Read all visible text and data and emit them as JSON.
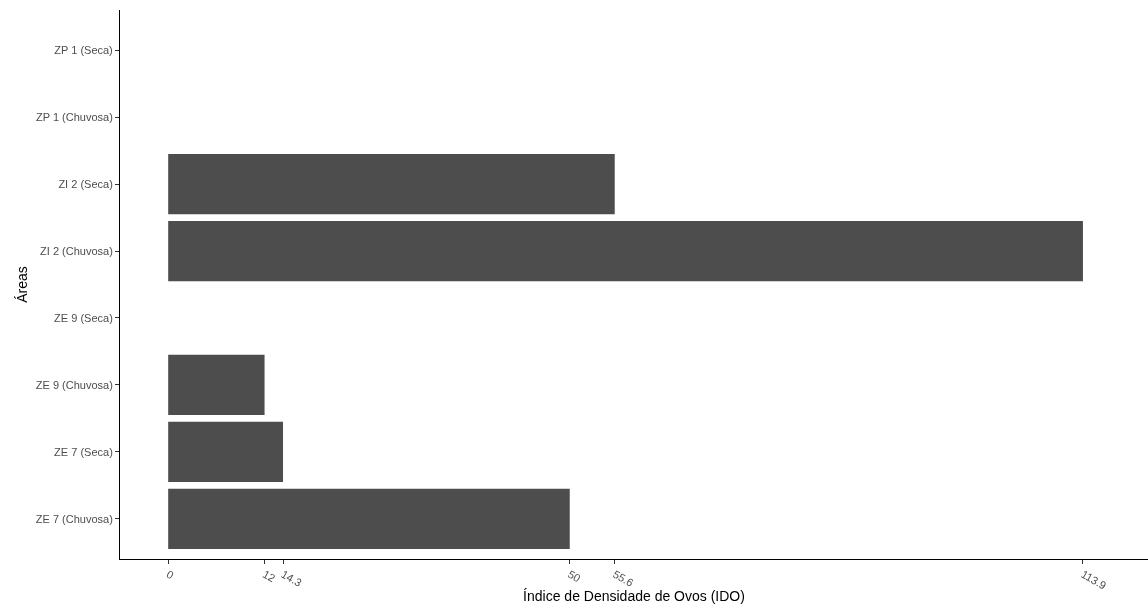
{
  "chart_data": {
    "type": "bar",
    "orientation": "horizontal",
    "xlabel": "Índice de Densidade de Ovos (IDO)",
    "ylabel": "Áreas",
    "categories": [
      "ZP 1 (Seca)",
      "ZP 1 (Chuvosa)",
      "ZI 2 (Seca)",
      "ZI 2 (Chuvosa)",
      "ZE 9 (Seca)",
      "ZE 9 (Chuvosa)",
      "ZE 7 (Seca)",
      "ZE 7 (Chuvosa)"
    ],
    "values": [
      null,
      null,
      55.6,
      113.9,
      null,
      12,
      14.3,
      50
    ],
    "color": "#4d4d4d",
    "xlim": [
      -6,
      122
    ],
    "xticks": [
      0,
      12,
      14.3,
      50,
      55.6,
      113.9
    ],
    "grid": false,
    "legend": false
  }
}
